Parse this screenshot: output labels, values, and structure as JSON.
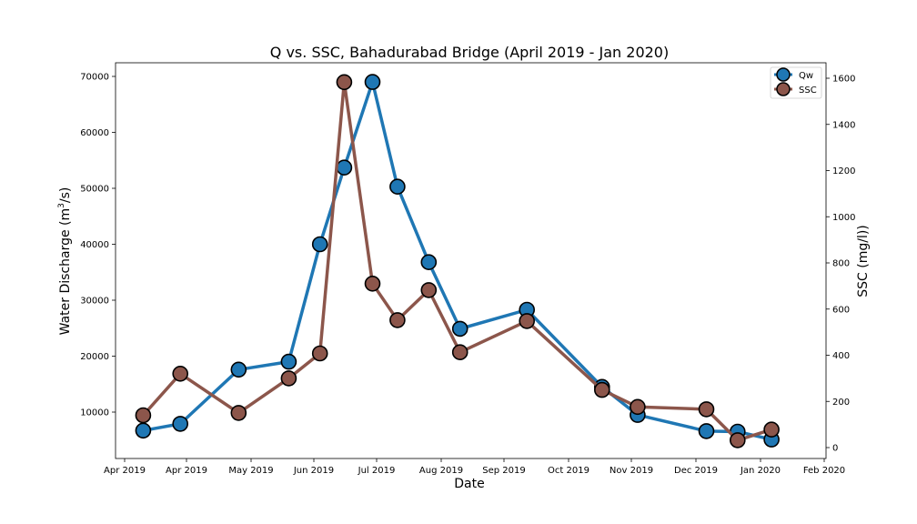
{
  "chart_data": {
    "type": "line",
    "title": "Q vs. SSC, Bahadurabad Bridge (April 2019 - Jan 2020)",
    "xlabel": "Date",
    "ylabel_left_prefix": "Water Discharge (m",
    "ylabel_left_sup": "3",
    "ylabel_left_suffix": "/s)",
    "ylabel_right": "SSC (mg/l))",
    "x_ticks": [
      "Apr 2019",
      "Apr 2019",
      "May 2019",
      "Jun 2019",
      "Jul 2019",
      "Aug 2019",
      "Sep 2019",
      "Oct 2019",
      "Nov 2019",
      "Dec 2019",
      "Jan 2020",
      "Feb 2020"
    ],
    "y_left_ticks": [
      "10000",
      "20000",
      "30000",
      "40000",
      "50000",
      "60000",
      "70000"
    ],
    "y_right_ticks": [
      "0",
      "200",
      "400",
      "600",
      "800",
      "1000",
      "1200",
      "1400",
      "1600"
    ],
    "legend_position": "top-right",
    "series": [
      {
        "name": "Qw",
        "axis": "left",
        "color": "#1f77b4",
        "points": [
          {
            "x": "2019-04-10",
            "y": 6700
          },
          {
            "x": "2019-04-28",
            "y": 7900
          },
          {
            "x": "2019-05-26",
            "y": 17600
          },
          {
            "x": "2019-06-19",
            "y": 19000
          },
          {
            "x": "2019-07-04",
            "y": 40000
          },
          {
            "x": "2019-07-16",
            "y": 53700
          },
          {
            "x": "2019-07-30",
            "y": 69000
          },
          {
            "x": "2019-08-11",
            "y": 50300
          },
          {
            "x": "2019-08-26",
            "y": 36800
          },
          {
            "x": "2019-09-10",
            "y": 24900
          },
          {
            "x": "2019-10-12",
            "y": 28300
          },
          {
            "x": "2019-11-17",
            "y": 14500
          },
          {
            "x": "2019-12-04",
            "y": 9500
          },
          {
            "x": "2020-01-06",
            "y": 6600
          },
          {
            "x": "2020-01-21",
            "y": 6500
          },
          {
            "x": "2020-02-06",
            "y": 5100
          }
        ]
      },
      {
        "name": "SSC",
        "axis": "right",
        "color": "#8c564b",
        "points": [
          {
            "x": "2019-04-10",
            "y": 140
          },
          {
            "x": "2019-04-28",
            "y": 320
          },
          {
            "x": "2019-05-26",
            "y": 150
          },
          {
            "x": "2019-06-19",
            "y": 300
          },
          {
            "x": "2019-07-04",
            "y": 408
          },
          {
            "x": "2019-07-16",
            "y": 1583
          },
          {
            "x": "2019-07-30",
            "y": 710
          },
          {
            "x": "2019-08-11",
            "y": 552
          },
          {
            "x": "2019-08-26",
            "y": 682
          },
          {
            "x": "2019-09-10",
            "y": 413
          },
          {
            "x": "2019-10-12",
            "y": 548
          },
          {
            "x": "2019-11-17",
            "y": 250
          },
          {
            "x": "2019-12-04",
            "y": 176
          },
          {
            "x": "2020-01-06",
            "y": 166
          },
          {
            "x": "2020-01-21",
            "y": 32
          },
          {
            "x": "2020-02-06",
            "y": 78
          }
        ]
      }
    ]
  }
}
